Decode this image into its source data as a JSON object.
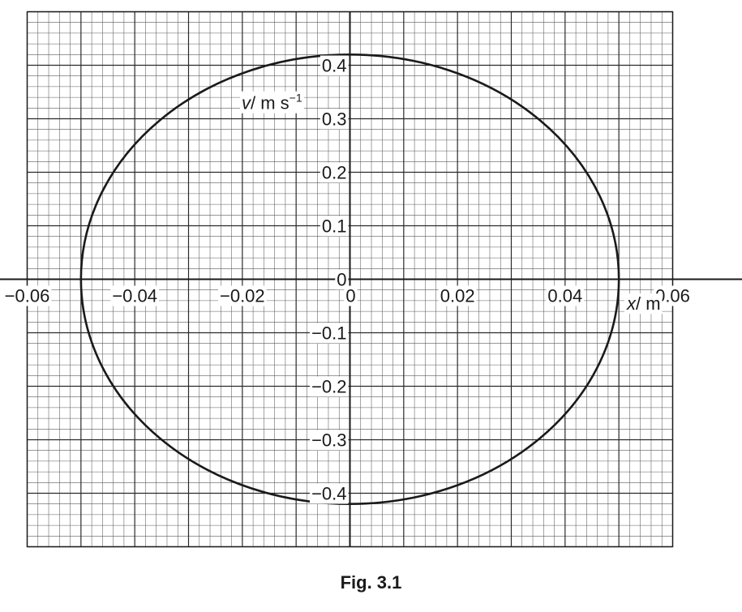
{
  "chart_data": {
    "type": "line",
    "shape": "ellipse",
    "center": [
      0,
      0
    ],
    "x_semi_axis": 0.05,
    "y_semi_axis": 0.42,
    "xlim": [
      -0.06,
      0.06
    ],
    "ylim": [
      -0.5,
      0.5
    ],
    "xlabel_var": "x",
    "xlabel_unit": "/ m",
    "ylabel_var": "v",
    "ylabel_unit": "/ m s",
    "ylabel_exp": "−1",
    "x_ticks": [
      {
        "value": -0.06,
        "label": "−0.06"
      },
      {
        "value": -0.04,
        "label": "−0.04"
      },
      {
        "value": -0.02,
        "label": "−0.02"
      },
      {
        "value": 0,
        "label": "0"
      },
      {
        "value": 0.02,
        "label": "0.02"
      },
      {
        "value": 0.04,
        "label": "0.04"
      },
      {
        "value": 0.06,
        "label": "0.06"
      }
    ],
    "y_ticks": [
      {
        "value": 0.4,
        "label": "0.4"
      },
      {
        "value": 0.3,
        "label": "0.3"
      },
      {
        "value": 0.2,
        "label": "0.2"
      },
      {
        "value": 0.1,
        "label": "0.1"
      },
      {
        "value": 0,
        "label": "0"
      },
      {
        "value": -0.1,
        "label": "−0.1"
      },
      {
        "value": -0.2,
        "label": "−0.2"
      },
      {
        "value": -0.3,
        "label": "−0.3"
      },
      {
        "value": -0.4,
        "label": "−0.4"
      }
    ],
    "grid": true,
    "grid_minor_x": 0.002,
    "grid_minor_y": 0.02,
    "grid_major_x": 0.01,
    "grid_major_y": 0.1
  },
  "caption": "Fig. 3.1"
}
